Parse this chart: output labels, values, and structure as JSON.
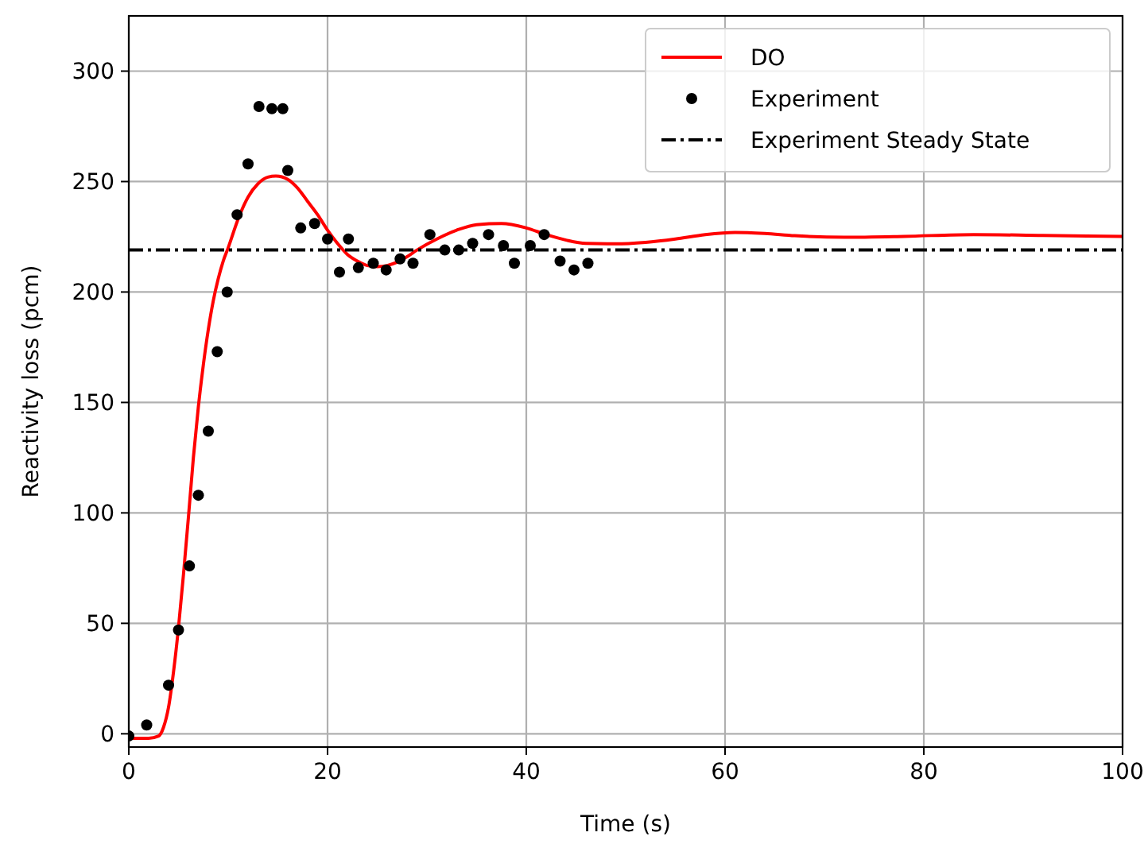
{
  "chart_data": {
    "type": "line",
    "xlabel": "Time (s)",
    "ylabel": "Reactivity loss (pcm)",
    "xlim": [
      0,
      100
    ],
    "ylim": [
      -6,
      325
    ],
    "xticks": [
      0,
      20,
      40,
      60,
      80,
      100
    ],
    "yticks": [
      0,
      50,
      100,
      150,
      200,
      250,
      300
    ],
    "grid": true,
    "legend": "top right",
    "series": [
      {
        "name": "DO",
        "color": "#ff0000",
        "line_style": "solid",
        "x": [
          0,
          1,
          2,
          3,
          3.5,
          4,
          4.5,
          5,
          5.5,
          6,
          6.5,
          7,
          7.5,
          8,
          8.5,
          9,
          9.5,
          10,
          11,
          12,
          13,
          14,
          14.8,
          16,
          17,
          18,
          19,
          20,
          21,
          22,
          23,
          24,
          25,
          26,
          27,
          28,
          29,
          31,
          33,
          35,
          37.5,
          40,
          42,
          44,
          46,
          49,
          52,
          55,
          58,
          61,
          64,
          67,
          72,
          78,
          85,
          92,
          100
        ],
        "values": [
          -2,
          -2,
          -2,
          -1,
          3,
          12,
          28,
          48,
          72,
          98,
          125,
          148,
          167,
          183,
          196,
          206,
          214,
          220,
          233,
          243,
          249,
          252,
          252.5,
          251,
          247,
          241,
          235,
          228,
          222,
          217,
          214,
          212,
          211.5,
          212,
          213.5,
          216,
          219,
          224,
          228,
          230.5,
          231,
          229,
          226,
          223.5,
          222,
          221.8,
          222.5,
          224,
          226,
          227,
          226.5,
          225.5,
          224.8,
          225.2,
          226,
          225.6,
          225.2
        ]
      },
      {
        "name": "Experiment",
        "type": "scatter",
        "color": "#000000",
        "marker": "circle",
        "x": [
          0,
          1.8,
          4,
          5,
          6.1,
          7,
          8,
          8.9,
          9.9,
          10.9,
          12,
          13.1,
          14.4,
          15.5,
          16,
          17.3,
          18.7,
          20,
          21.2,
          22.1,
          23.1,
          24.6,
          25.9,
          27.3,
          28.6,
          30.3,
          31.8,
          33.2,
          34.6,
          36.2,
          37.7,
          38.8,
          40.4,
          41.8,
          43.4,
          44.8,
          46.2
        ],
        "values": [
          -1,
          4,
          22,
          47,
          76,
          108,
          137,
          173,
          200,
          235,
          258,
          284,
          283,
          283,
          255,
          229,
          231,
          224,
          209,
          224,
          211,
          213,
          210,
          215,
          213,
          226,
          219,
          219,
          222,
          226,
          221,
          213,
          221,
          226,
          214,
          210,
          213
        ]
      }
    ],
    "ref_lines": [
      {
        "axis": "y",
        "value": 219,
        "label": "Experiment Steady State",
        "color": "#000000",
        "line_style": "dashdot"
      }
    ]
  }
}
